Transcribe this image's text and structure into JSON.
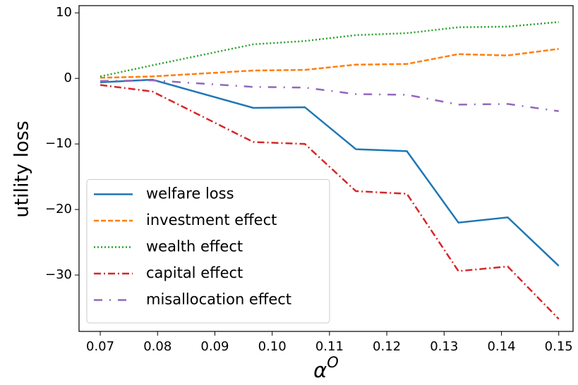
{
  "chart_data": {
    "type": "line",
    "xlabel": {
      "base": "α",
      "sup": "O"
    },
    "ylabel": "utility loss",
    "x": [
      0.07,
      0.0791,
      0.0967,
      0.1057,
      0.1146,
      0.1235,
      0.1325,
      0.1411,
      0.15
    ],
    "series": [
      {
        "name": "welfare loss",
        "color": "#1f77b4",
        "style": "solid",
        "values": [
          -0.6,
          -0.2,
          -4.5,
          -4.4,
          -10.8,
          -11.1,
          -22.0,
          -21.2,
          -28.6
        ]
      },
      {
        "name": "investment effect",
        "color": "#ff7f0e",
        "style": "dashed",
        "values": [
          0.1,
          0.3,
          1.2,
          1.3,
          2.1,
          2.2,
          3.7,
          3.5,
          4.5
        ]
      },
      {
        "name": "wealth effect",
        "color": "#2ca02c",
        "style": "dotted",
        "values": [
          0.3,
          2.0,
          5.2,
          5.7,
          6.6,
          6.9,
          7.8,
          7.9,
          8.6
        ]
      },
      {
        "name": "capital effect",
        "color": "#d62728",
        "style": "dashdot",
        "values": [
          -1.0,
          -2.0,
          -9.7,
          -10.0,
          -17.2,
          -17.6,
          -29.4,
          -28.7,
          -36.7
        ]
      },
      {
        "name": "misallocation effect",
        "color": "#9467bd",
        "style": "loosedashdot",
        "values": [
          -0.4,
          -0.3,
          -1.3,
          -1.4,
          -2.4,
          -2.5,
          -4.0,
          -3.9,
          -5.0
        ]
      }
    ],
    "xlim": [
      0.0663,
      0.1525
    ],
    "ylim": [
      -38.6,
      11.1
    ],
    "xticks": [
      0.07,
      0.08,
      0.09,
      {
        "value": 0.1,
        "label": "0.10"
      },
      0.11,
      0.12,
      0.13,
      0.14,
      0.15
    ],
    "yticks": [
      {
        "value": -30,
        "label": "−30"
      },
      {
        "value": -20,
        "label": "−20"
      },
      {
        "value": -10,
        "label": "−10"
      },
      0,
      10
    ],
    "legend": "lower left",
    "grid": false
  }
}
